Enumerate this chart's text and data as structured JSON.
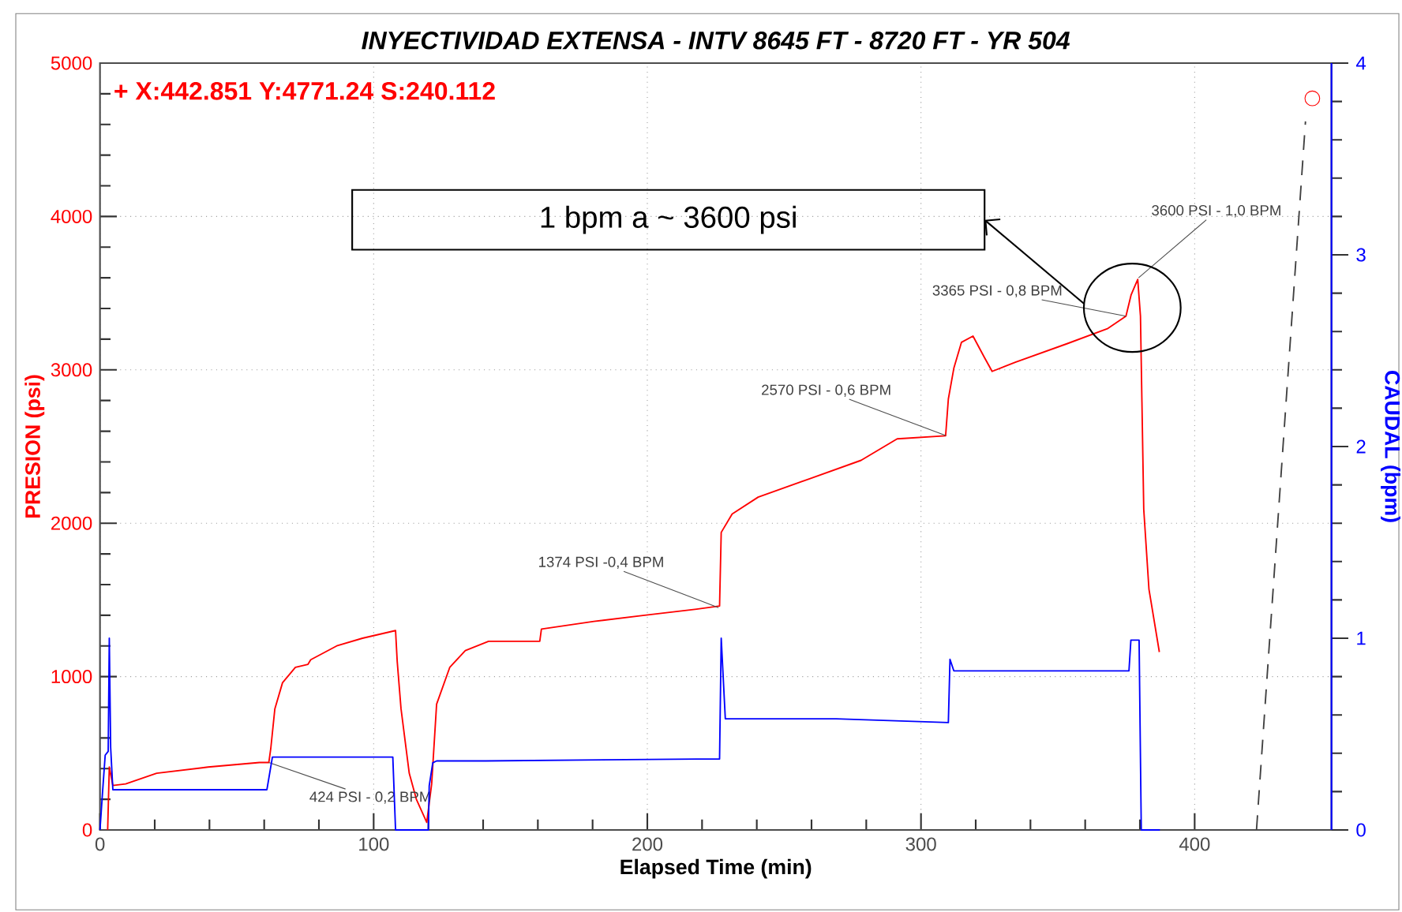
{
  "chart_data": {
    "type": "line",
    "title": "INYECTIVIDAD EXTENSA - INTV 8645 FT - 8720 FT -  YR 504",
    "xlabel": "Elapsed Time (min)",
    "ylabel": "PRESION (psi)",
    "y2label": "CAUDAL (bpm)",
    "annotations": [
      "+ X:442.851  Y:4771.24  S:240.112",
      {
        "text": "424 PSI - 0,2 BPM",
        "x": 61.7,
        "y": 440
      },
      {
        "text": "1374 PSI -0,4 BPM",
        "x": 226,
        "y": 1450
      },
      {
        "text": "2570 PSI - 0,6 BPM",
        "x": 309,
        "y": 2572
      },
      {
        "text": "3365 PSI - 0,8 BPM",
        "x": 374.9,
        "y": 3350
      },
      {
        "text": "3600 PSI - 1,0 BPM",
        "x": 379.5,
        "y": 3600
      },
      "1 bpm a ~ 3600 psi"
    ],
    "xlim": [
      0,
      450
    ],
    "xticks": [
      0,
      100,
      200,
      300,
      400
    ],
    "ylim": [
      0,
      5000
    ],
    "yticks": [
      0,
      1000,
      2000,
      3000,
      4000,
      5000
    ],
    "y2lim": [
      0,
      4
    ],
    "y2ticks": [
      0,
      1,
      2,
      3,
      4
    ],
    "grid": true,
    "series": [
      {
        "color": "#ff0000",
        "x": [
          2.8,
          3.4,
          4.7,
          9.4,
          20.7,
          39.5,
          58.3,
          61.7,
          62.4,
          63.9,
          66.7,
          71.4,
          76,
          77,
          86.5,
          95.9,
          108,
          108.6,
          110,
          113,
          115.6,
          119.4,
          121.2,
          123,
          127.8,
          133.5,
          142,
          160.7,
          161.3,
          180.5,
          199,
          218,
          226.4,
          227,
          231,
          240.5,
          259.3,
          278.1,
          291.3,
          309,
          310,
          312,
          314.8,
          319,
          323.2,
          326,
          334.5,
          353.3,
          368.3,
          374.9,
          376.8,
          379.2,
          380.2,
          381.4,
          383.3,
          387.1
        ],
        "values": [
          0,
          410,
          290,
          300,
          370,
          410,
          440,
          440,
          530,
          790,
          960,
          1060,
          1080,
          1110,
          1200,
          1250,
          1300,
          1100,
          790,
          370,
          200,
          50,
          300,
          820,
          1060,
          1170,
          1230,
          1230,
          1310,
          1360,
          1400,
          1440,
          1460,
          1940,
          2060,
          2170,
          2290,
          2410,
          2550,
          2570,
          2810,
          3010,
          3180,
          3220,
          3080,
          2990,
          3050,
          3170,
          3270,
          3350,
          3490,
          3590,
          3350,
          2090,
          1570,
          1160
        ]
      },
      {
        "color": "#0000ff",
        "axis": "y2",
        "x": [
          0,
          0.9,
          1.9,
          3,
          3.4,
          3.9,
          4.7,
          20.7,
          61,
          63,
          107,
          108,
          120,
          120.3,
          121.6,
          123,
          141,
          218,
          226.4,
          227,
          228.5,
          269,
          310,
          310.6,
          312,
          376,
          376.7,
          379.7,
          380.5,
          387.3
        ],
        "values": [
          0,
          0.19,
          0.39,
          0.41,
          1.0,
          0.43,
          0.21,
          0.21,
          0.21,
          0.38,
          0.38,
          0,
          0,
          0.23,
          0.35,
          0.36,
          0.36,
          0.37,
          0.37,
          1.0,
          0.58,
          0.58,
          0.56,
          0.89,
          0.83,
          0.83,
          0.99,
          0.99,
          0,
          0
        ]
      },
      {
        "color": "#404040",
        "line_style": "dashed",
        "x": [
          422.6,
          440.5
        ],
        "values": [
          0,
          4620
        ]
      },
      {
        "type": "scatter",
        "color": "#ff0000",
        "marker": "circle",
        "x": [
          443
        ],
        "values": [
          4770
        ]
      }
    ]
  }
}
